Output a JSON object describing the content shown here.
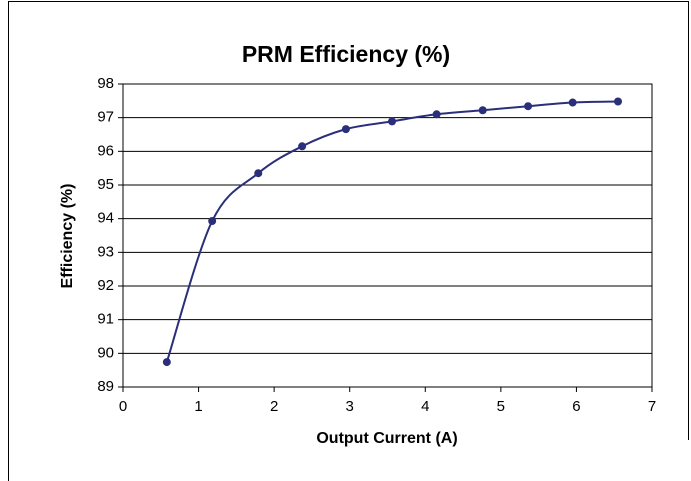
{
  "chart_data": {
    "type": "line",
    "title": "PRM Efficiency (%)",
    "x_label": "Output Current (A)",
    "y_label": "Efficiency (%)",
    "series": [
      {
        "color": "#2b2f7a",
        "x": [
          0.58,
          1.18,
          1.79,
          2.37,
          2.95,
          3.56,
          4.15,
          4.76,
          5.36,
          5.95,
          6.55
        ],
        "values": [
          89.74,
          93.93,
          95.35,
          96.15,
          96.66,
          96.89,
          97.1,
          97.22,
          97.34,
          97.45,
          97.48
        ]
      }
    ],
    "xlim": [
      0,
      7
    ],
    "xticks": [
      0,
      1,
      2,
      3,
      4,
      5,
      6,
      7
    ],
    "ylim": [
      89,
      98
    ],
    "yticks": [
      89,
      90,
      91,
      92,
      93,
      94,
      95,
      96,
      97,
      98
    ],
    "grid": true
  }
}
